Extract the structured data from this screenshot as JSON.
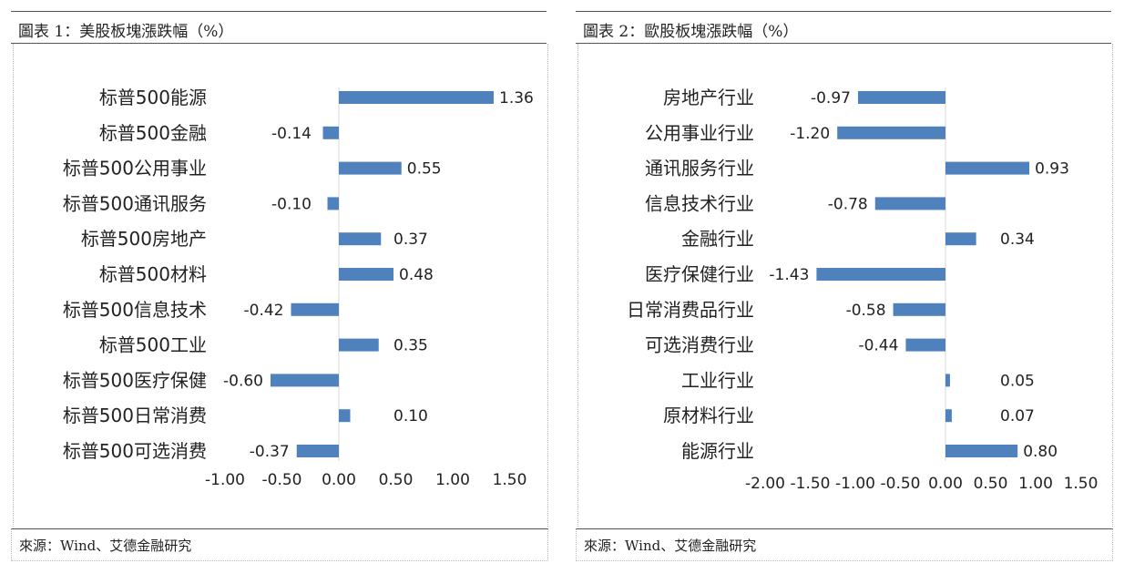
{
  "panels": [
    {
      "title": "圖表 1：美股板塊漲跌幅（%）",
      "source": "來源：Wind、艾德金融研究"
    },
    {
      "title": "圖表 2：歐股板塊漲跌幅（%）",
      "source": "來源：Wind、艾德金融研究"
    }
  ],
  "chart_data": [
    {
      "type": "bar",
      "orientation": "horizontal",
      "title": "圖表 1：美股板塊漲跌幅（%）",
      "categories": [
        "标普500能源",
        "标普500金融",
        "标普500公用事业",
        "标普500通讯服务",
        "标普500房地产",
        "标普500材料",
        "标普500信息技术",
        "标普500工业",
        "标普500医疗保健",
        "标普500日常消费",
        "标普500可选消费"
      ],
      "values": [
        1.36,
        -0.14,
        0.55,
        -0.1,
        0.37,
        0.48,
        -0.42,
        0.35,
        -0.6,
        0.1,
        -0.37
      ],
      "data_labels": [
        "1.36",
        "-0.14",
        "0.55",
        "-0.10",
        "0.37",
        "0.48",
        "-0.42",
        "0.35",
        "-0.60",
        "0.10",
        "-0.37"
      ],
      "xlim": [
        -1.0,
        1.5
      ],
      "ticks": [
        -1.0,
        -0.5,
        0.0,
        0.5,
        1.0,
        1.5
      ],
      "tick_labels": [
        "-1.00",
        "-0.50",
        "0.00",
        "0.50",
        "1.00",
        "1.50"
      ],
      "bar_color": "#4f81bd",
      "grid": false,
      "legend": "none"
    },
    {
      "type": "bar",
      "orientation": "horizontal",
      "title": "圖表 2：歐股板塊漲跌幅（%）",
      "categories": [
        "房地产行业",
        "公用事业行业",
        "通讯服务行业",
        "信息技术行业",
        "金融行业",
        "医疗保健行业",
        "日常消费品行业",
        "可选消费行业",
        "工业行业",
        "原材料行业",
        "能源行业"
      ],
      "values": [
        -0.97,
        -1.2,
        0.93,
        -0.78,
        0.34,
        -1.43,
        -0.58,
        -0.44,
        0.05,
        0.07,
        0.8
      ],
      "data_labels": [
        "-0.97",
        "-1.20",
        "0.93",
        "-0.78",
        "0.34",
        "-1.43",
        "-0.58",
        "-0.44",
        "0.05",
        "0.07",
        "0.80"
      ],
      "xlim": [
        -2.0,
        1.5
      ],
      "ticks": [
        -2.0,
        -1.5,
        -1.0,
        -0.5,
        0.0,
        0.5,
        1.0,
        1.5
      ],
      "tick_labels": [
        "-2.00",
        "-1.50",
        "-1.00",
        "-0.50",
        "0.00",
        "0.50",
        "1.00",
        "1.50"
      ],
      "bar_color": "#4f81bd",
      "grid": false,
      "legend": "none"
    }
  ]
}
